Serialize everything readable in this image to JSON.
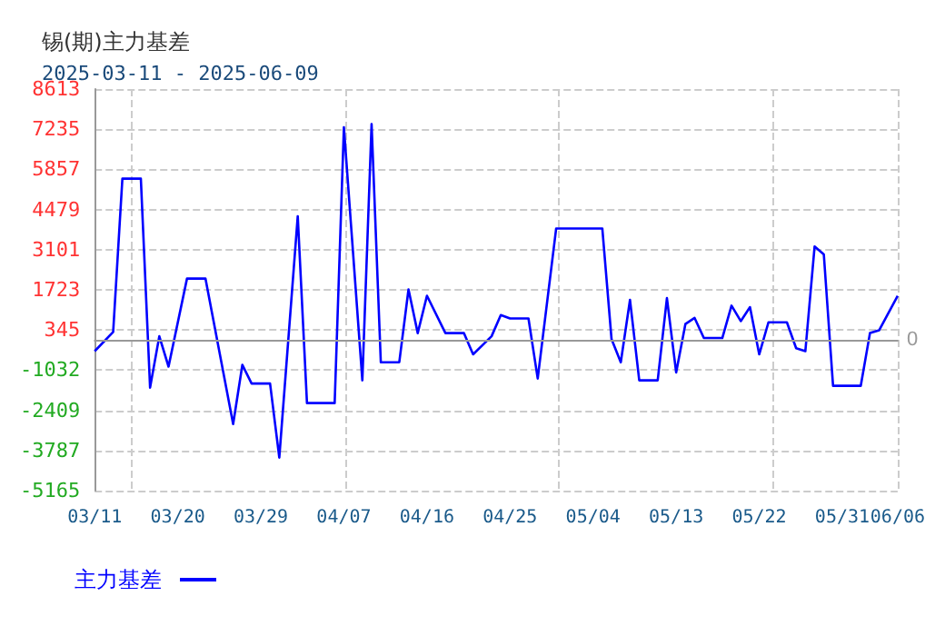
{
  "chart_data": {
    "type": "line",
    "title": "锡(期)主力基差",
    "subtitle": "2025-03-11 - 2025-06-09",
    "x": [
      "2025-03-11",
      "2025-03-13",
      "2025-03-14",
      "2025-03-16",
      "2025-03-17",
      "2025-03-18",
      "2025-03-19",
      "2025-03-21",
      "2025-03-23",
      "2025-03-26",
      "2025-03-27",
      "2025-03-28",
      "2025-03-30",
      "2025-03-31",
      "2025-04-02",
      "2025-04-03",
      "2025-04-06",
      "2025-04-07",
      "2025-04-09",
      "2025-04-10",
      "2025-04-11",
      "2025-04-13",
      "2025-04-14",
      "2025-04-15",
      "2025-04-16",
      "2025-04-18",
      "2025-04-20",
      "2025-04-21",
      "2025-04-23",
      "2025-04-24",
      "2025-04-25",
      "2025-04-27",
      "2025-04-28",
      "2025-04-30",
      "2025-05-05",
      "2025-05-06",
      "2025-05-07",
      "2025-05-08",
      "2025-05-09",
      "2025-05-11",
      "2025-05-12",
      "2025-05-13",
      "2025-05-14",
      "2025-05-15",
      "2025-05-16",
      "2025-05-18",
      "2025-05-19",
      "2025-05-20",
      "2025-05-21",
      "2025-05-22",
      "2025-05-23",
      "2025-05-25",
      "2025-05-26",
      "2025-05-27",
      "2025-05-28",
      "2025-05-29",
      "2025-05-30",
      "2025-06-02",
      "2025-06-03",
      "2025-06-04",
      "2025-06-06"
    ],
    "series": [
      {
        "name": "主力基差",
        "color": "#0000ff",
        "values": [
          -380,
          280,
          5540,
          5540,
          -1630,
          130,
          -910,
          2110,
          2110,
          -2880,
          -850,
          -1490,
          -1490,
          -4030,
          4250,
          -2160,
          -2160,
          7300,
          -1380,
          7410,
          -760,
          -760,
          1740,
          240,
          1520,
          240,
          240,
          -490,
          130,
          860,
          740,
          740,
          -1320,
          3830,
          3830,
          30,
          -760,
          1380,
          -1380,
          -1380,
          1440,
          -1110,
          550,
          760,
          70,
          70,
          1180,
          650,
          1130,
          -490,
          610,
          610,
          -280,
          -380,
          3210,
          2940,
          -1570,
          -1570,
          240,
          340,
          1520
        ]
      }
    ],
    "xlim": [
      "2025-03-11",
      "2025-06-06"
    ],
    "xticks": [
      {
        "value": "2025-03-11",
        "label": "03/11"
      },
      {
        "value": "2025-03-20",
        "label": "03/20"
      },
      {
        "value": "2025-03-29",
        "label": "03/29"
      },
      {
        "value": "2025-04-07",
        "label": "04/07"
      },
      {
        "value": "2025-04-16",
        "label": "04/16"
      },
      {
        "value": "2025-04-25",
        "label": "04/25"
      },
      {
        "value": "2025-05-04",
        "label": "05/04"
      },
      {
        "value": "2025-05-13",
        "label": "05/13"
      },
      {
        "value": "2025-05-22",
        "label": "05/22"
      },
      {
        "value": "2025-05-31",
        "label": "05/31"
      },
      {
        "value": "2025-06-06",
        "label": "06/06"
      }
    ],
    "ylim": [
      -5165,
      8613
    ],
    "yticks": [
      -5165,
      -3787,
      -2409,
      -1032,
      345,
      1723,
      3101,
      4479,
      5857,
      7235,
      8613
    ],
    "ref_lines": [
      {
        "axis": "y",
        "value": 0,
        "label": "0",
        "color": "#999999"
      }
    ],
    "grid": true,
    "legend": "bottom left",
    "marker": "none",
    "line_style": "solid"
  }
}
